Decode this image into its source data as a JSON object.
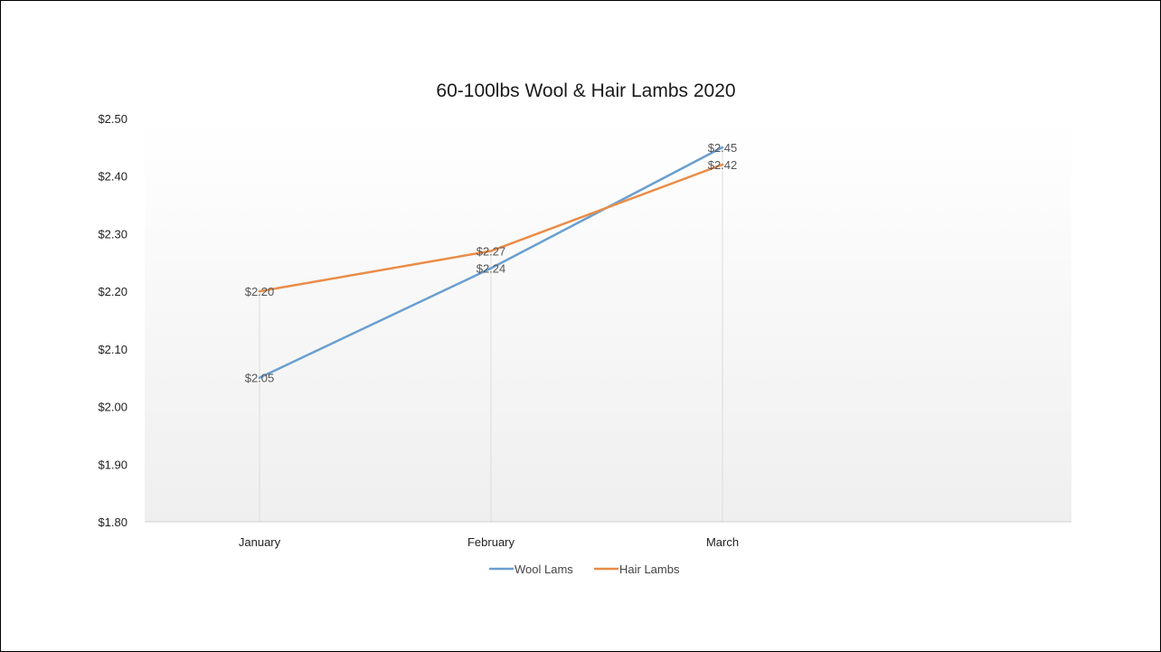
{
  "chart_data": {
    "type": "line",
    "title": "60-100lbs Wool & Hair Lambs 2020",
    "xlabel": "",
    "ylabel": "",
    "categories": [
      "January",
      "February",
      "March"
    ],
    "series": [
      {
        "name": "Wool Lams",
        "values": [
          2.05,
          2.24,
          2.45
        ],
        "labels": [
          "$2.05",
          "$2.24",
          "$2.45"
        ],
        "color": "#6a9fd0"
      },
      {
        "name": "Hair Lambs",
        "values": [
          2.2,
          2.27,
          2.42
        ],
        "labels": [
          "$2.20",
          "$2.27",
          "$2.42"
        ],
        "color": "#ea8c47"
      }
    ],
    "ylim": [
      1.8,
      2.5
    ],
    "yticks": [
      1.8,
      1.9,
      2.0,
      2.1,
      2.2,
      2.3,
      2.4,
      2.5
    ],
    "ytick_labels": [
      "$1.80",
      "$1.90",
      "$2.00",
      "$2.10",
      "$2.20",
      "$2.30",
      "$2.40",
      "$2.50"
    ],
    "grid": false,
    "legend": "bottom"
  }
}
